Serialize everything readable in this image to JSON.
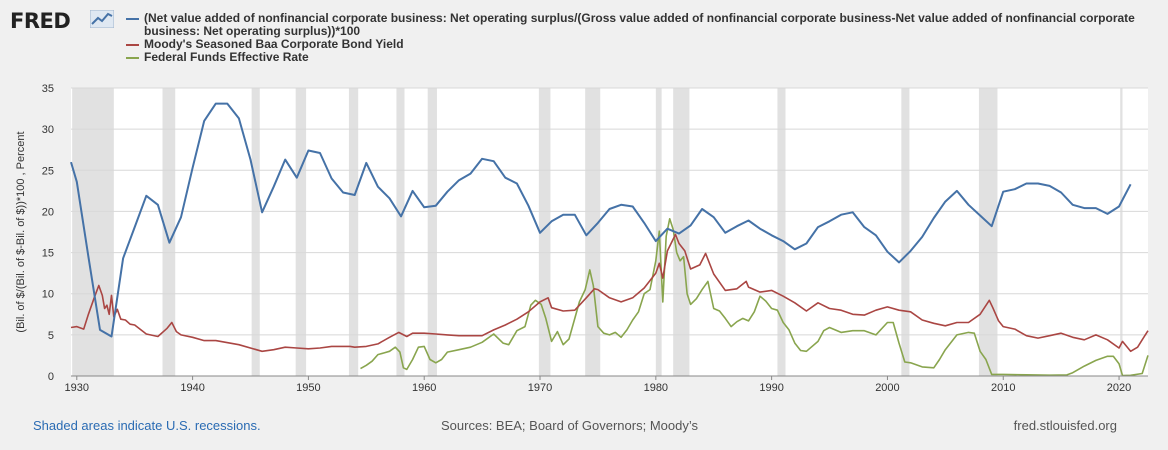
{
  "header": {
    "logo_text": "FRED",
    "logo_icon": "trend-line-icon"
  },
  "colors": {
    "series1": "#4572a7",
    "series2": "#aa4643",
    "series3": "#89a54e",
    "recession": "#e1e1e1",
    "grid": "#d8d8d8",
    "background": "#ffffff",
    "link": "#2a6bb3"
  },
  "footer": {
    "note": "Shaded areas indicate U.S. recessions.",
    "sources": "Sources: BEA; Board of Governors; Moody’s",
    "site": "fred.stlouisfed.org"
  },
  "chart_data": {
    "type": "line",
    "title": "",
    "xlabel": "",
    "ylabel": "(Bil. of $/(Bil. of $-Bil. of $))*100 , Percent",
    "xlim": [
      1929.5,
      2022.5
    ],
    "ylim": [
      0,
      35
    ],
    "x_ticks": [
      1930,
      1940,
      1950,
      1960,
      1970,
      1980,
      1990,
      2000,
      2010,
      2020
    ],
    "y_ticks": [
      0,
      5,
      10,
      15,
      20,
      25,
      30,
      35
    ],
    "grid": true,
    "legend_position": "top",
    "recessions": [
      [
        1929.6,
        1933.2
      ],
      [
        1937.4,
        1938.5
      ],
      [
        1945.1,
        1945.8
      ],
      [
        1948.9,
        1949.8
      ],
      [
        1953.5,
        1954.3
      ],
      [
        1957.6,
        1958.3
      ],
      [
        1960.3,
        1961.1
      ],
      [
        1969.9,
        1970.9
      ],
      [
        1973.9,
        1975.2
      ],
      [
        1980.0,
        1980.5
      ],
      [
        1981.5,
        1982.9
      ],
      [
        1990.5,
        1991.2
      ],
      [
        2001.2,
        2001.9
      ],
      [
        2007.9,
        2009.5
      ],
      [
        2020.1,
        2020.3
      ]
    ],
    "series": [
      {
        "name": "(Net value added of nonfinancial corporate business: Net operating surplus/(Gross value added of nonfinancial corporate business-Net value added of nonfinancial corporate business: Net operating surplus))*100",
        "color": "#4572a7",
        "x": [
          1929,
          1930,
          1931,
          1932,
          1933,
          1934,
          1935,
          1936,
          1937,
          1938,
          1939,
          1940,
          1941,
          1942,
          1943,
          1944,
          1945,
          1946,
          1947,
          1948,
          1949,
          1950,
          1951,
          1952,
          1953,
          1954,
          1955,
          1956,
          1957,
          1958,
          1959,
          1960,
          1961,
          1962,
          1963,
          1964,
          1965,
          1966,
          1967,
          1968,
          1969,
          1970,
          1971,
          1972,
          1973,
          1974,
          1975,
          1976,
          1977,
          1978,
          1979,
          1980,
          1981,
          1982,
          1983,
          1984,
          1985,
          1986,
          1987,
          1988,
          1989,
          1990,
          1991,
          1992,
          1993,
          1994,
          1995,
          1996,
          1997,
          1998,
          1999,
          2000,
          2001,
          2002,
          2003,
          2004,
          2005,
          2006,
          2007,
          2008,
          2009,
          2010,
          2011,
          2012,
          2013,
          2014,
          2015,
          2016,
          2017,
          2018,
          2019,
          2020,
          2021
        ],
        "values": [
          26,
          23.6,
          14.5,
          5.6,
          4.8,
          14.3,
          18.1,
          21.9,
          20.8,
          16.2,
          19.3,
          25.3,
          31,
          33.1,
          33.1,
          31.3,
          26.3,
          19.9,
          23,
          26.3,
          24.1,
          27.4,
          27.1,
          24,
          22.3,
          22,
          25.9,
          23,
          21.6,
          19.4,
          22.5,
          20.5,
          20.7,
          22.4,
          23.8,
          24.6,
          26.4,
          26.1,
          24.1,
          23.4,
          20.7,
          17.4,
          18.8,
          19.6,
          19.6,
          17.1,
          18.6,
          20.3,
          20.8,
          20.6,
          18.6,
          16.4,
          17.9,
          17.3,
          18.3,
          20.3,
          19.3,
          17.4,
          18.2,
          18.9,
          17.9,
          17.1,
          16.4,
          15.4,
          16.1,
          18.1,
          18.8,
          19.6,
          19.9,
          18.1,
          17.1,
          15.1,
          13.8,
          15.2,
          16.9,
          19.2,
          21.2,
          22.5,
          20.8,
          19.5,
          18.2,
          22.4,
          22.7,
          23.4,
          23.4,
          23.1,
          22.3,
          20.8,
          20.4,
          20.4,
          19.7,
          20.6,
          23.3
        ]
      },
      {
        "name": "Moody's Seasoned Baa Corporate Bond Yield",
        "color": "#aa4643",
        "x": [
          1929.5,
          1930,
          1930.6,
          1931,
          1931.5,
          1931.9,
          1932.2,
          1932.4,
          1932.6,
          1932.8,
          1933.0,
          1933.2,
          1933.5,
          1933.8,
          1934.2,
          1934.6,
          1935,
          1936,
          1937,
          1937.8,
          1938.2,
          1938.6,
          1939,
          1940,
          1941,
          1942,
          1944,
          1946,
          1947,
          1948,
          1949,
          1950,
          1951,
          1952,
          1953,
          1953.6,
          1954,
          1955,
          1956,
          1957,
          1957.8,
          1958.5,
          1959,
          1960,
          1961,
          1962,
          1963,
          1964,
          1965,
          1966,
          1967,
          1968,
          1969,
          1970,
          1970.7,
          1971,
          1972,
          1973,
          1974,
          1974.7,
          1975,
          1976,
          1977,
          1978,
          1979,
          1980,
          1980.3,
          1980.6,
          1981,
          1981.7,
          1982,
          1982.5,
          1983,
          1983.8,
          1984.3,
          1985,
          1986,
          1987,
          1987.8,
          1988,
          1989,
          1990,
          1991,
          1992,
          1993,
          1994,
          1995,
          1996,
          1997,
          1998,
          1999,
          2000,
          2001,
          2002,
          2003,
          2004,
          2005,
          2006,
          2007,
          2008,
          2008.8,
          2009.1,
          2009.6,
          2010,
          2011,
          2012,
          2013,
          2014,
          2015,
          2016,
          2017,
          2018,
          2019,
          2020,
          2020.3,
          2021,
          2021.6,
          2022,
          2022.5
        ],
        "values": [
          5.9,
          6.0,
          5.7,
          7.5,
          9.5,
          11,
          9.8,
          8.2,
          8.6,
          7.5,
          9.8,
          7.2,
          8.1,
          6.9,
          6.8,
          6.3,
          6.2,
          5.1,
          4.8,
          5.8,
          6.5,
          5.4,
          5.0,
          4.7,
          4.3,
          4.3,
          3.8,
          3.0,
          3.2,
          3.5,
          3.4,
          3.3,
          3.4,
          3.6,
          3.6,
          3.6,
          3.5,
          3.6,
          3.9,
          4.7,
          5.3,
          4.8,
          5.2,
          5.2,
          5.1,
          5.0,
          4.9,
          4.9,
          4.9,
          5.6,
          6.2,
          6.9,
          7.8,
          9.0,
          9.5,
          8.3,
          7.9,
          8.0,
          9.5,
          10.6,
          10.5,
          9.5,
          9.0,
          9.5,
          10.7,
          12.5,
          13.7,
          11.9,
          15.2,
          17.2,
          16.1,
          15.2,
          13.0,
          13.5,
          14.9,
          12.4,
          10.4,
          10.6,
          11.5,
          10.8,
          10.2,
          10.4,
          9.7,
          8.9,
          7.9,
          8.9,
          8.2,
          8.0,
          7.5,
          7.4,
          8.0,
          8.4,
          8.0,
          7.8,
          6.8,
          6.4,
          6.1,
          6.5,
          6.5,
          7.5,
          9.2,
          8.3,
          6.7,
          6.0,
          5.7,
          4.9,
          4.6,
          4.9,
          5.2,
          4.7,
          4.4,
          5.0,
          4.4,
          3.4,
          4.2,
          3.0,
          3.5,
          4.4,
          5.5
        ]
      },
      {
        "name": "Federal Funds Effective Rate",
        "color": "#89a54e",
        "x": [
          1954.5,
          1955,
          1955.5,
          1956,
          1956.5,
          1957,
          1957.5,
          1957.9,
          1958.2,
          1958.5,
          1959,
          1959.5,
          1960,
          1960.5,
          1961,
          1961.5,
          1962,
          1963,
          1964,
          1965,
          1966,
          1966.8,
          1967.3,
          1968,
          1968.7,
          1969.2,
          1969.6,
          1970.1,
          1970.5,
          1971,
          1971.5,
          1972,
          1972.5,
          1973,
          1973.4,
          1973.9,
          1974.3,
          1974.6,
          1975,
          1975.5,
          1976,
          1976.5,
          1977,
          1977.5,
          1978,
          1978.5,
          1979,
          1979.5,
          1980.0,
          1980.3,
          1980.6,
          1980.9,
          1981.2,
          1981.5,
          1981.8,
          1982.1,
          1982.4,
          1982.7,
          1983,
          1983.5,
          1984,
          1984.5,
          1985,
          1985.5,
          1986,
          1986.5,
          1987,
          1987.5,
          1988,
          1988.5,
          1989,
          1989.5,
          1990,
          1990.5,
          1991,
          1991.5,
          1992,
          1992.5,
          1993,
          1994,
          1994.5,
          1995,
          1996,
          1997,
          1998,
          1999,
          2000,
          2000.5,
          2001,
          2001.5,
          2002,
          2003,
          2004,
          2004.5,
          2005,
          2006,
          2007,
          2007.5,
          2008,
          2008.5,
          2009,
          2010,
          2012,
          2014,
          2015.5,
          2016,
          2017,
          2018,
          2019,
          2019.5,
          2020,
          2020.3,
          2021,
          2022,
          2022.5
        ],
        "values": [
          0.9,
          1.3,
          1.8,
          2.6,
          2.8,
          3.0,
          3.5,
          2.9,
          1.0,
          0.8,
          2.0,
          3.5,
          3.6,
          2.0,
          1.6,
          2.0,
          2.9,
          3.2,
          3.5,
          4.1,
          5.1,
          4.0,
          3.8,
          5.5,
          6.0,
          8.6,
          9.2,
          8.7,
          7.0,
          4.2,
          5.4,
          3.8,
          4.5,
          7.0,
          9.0,
          10.5,
          12.9,
          11.0,
          6.0,
          5.2,
          5.0,
          5.3,
          4.7,
          5.6,
          6.8,
          7.8,
          10.0,
          10.5,
          14.0,
          17.6,
          9.0,
          17.0,
          19.1,
          17.8,
          15.0,
          14.0,
          14.5,
          10.0,
          8.7,
          9.4,
          10.5,
          11.5,
          8.2,
          7.9,
          7.0,
          6.0,
          6.6,
          7.0,
          6.7,
          7.8,
          9.7,
          9.1,
          8.2,
          8.0,
          6.5,
          5.6,
          4.0,
          3.1,
          3.0,
          4.2,
          5.5,
          5.9,
          5.3,
          5.5,
          5.5,
          5.0,
          6.5,
          6.5,
          4.0,
          1.7,
          1.6,
          1.1,
          1.0,
          2.0,
          3.2,
          5.0,
          5.3,
          5.2,
          3.0,
          2.0,
          0.2,
          0.2,
          0.15,
          0.1,
          0.13,
          0.4,
          1.2,
          1.9,
          2.4,
          2.4,
          1.5,
          0.06,
          0.08,
          0.3,
          2.5
        ]
      }
    ]
  }
}
